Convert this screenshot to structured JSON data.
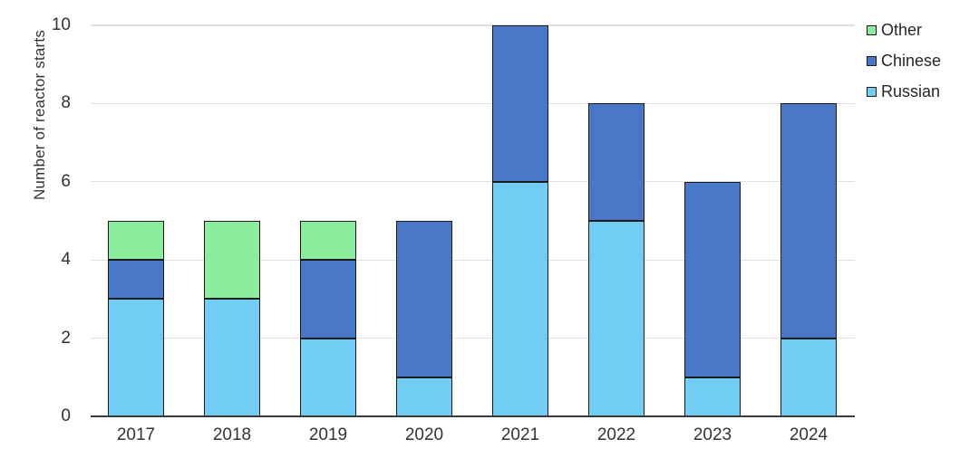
{
  "chart_data": {
    "type": "bar",
    "stacked": true,
    "title": "",
    "xlabel": "",
    "ylabel": "Number of reactor starts",
    "categories": [
      "2017",
      "2018",
      "2019",
      "2020",
      "2021",
      "2022",
      "2023",
      "2024"
    ],
    "series": [
      {
        "name": "Russian",
        "color": "#72CDF4",
        "values": [
          3,
          3,
          2,
          1,
          6,
          5,
          1,
          2
        ]
      },
      {
        "name": "Chinese",
        "color": "#4A78C8",
        "values": [
          1,
          0,
          2,
          4,
          4,
          3,
          5,
          6
        ]
      },
      {
        "name": "Other",
        "color": "#8BEE9E",
        "values": [
          1,
          2,
          1,
          0,
          0,
          0,
          0,
          0
        ]
      }
    ],
    "totals": [
      5,
      5,
      5,
      5,
      10,
      8,
      6,
      8
    ],
    "ylim": [
      0,
      10
    ],
    "yticks": [
      0,
      2,
      4,
      6,
      8,
      10
    ],
    "grid": true,
    "legend_position": "top-right",
    "legend_order": [
      "Other",
      "Chinese",
      "Russian"
    ]
  },
  "colors": {
    "background": "#FFFFFF",
    "gridline": "#E0E0E0",
    "axis_line": "#3A3A3A",
    "text": "#333333",
    "bar_border": "#1C1C1C"
  }
}
